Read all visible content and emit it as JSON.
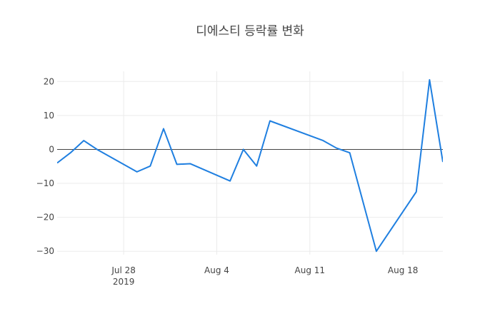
{
  "chart_data": {
    "type": "line",
    "title": "디에스티 등락률 변화",
    "xlabel": "",
    "ylabel": "",
    "x_ticks": [
      {
        "label": "Jul 28",
        "sub": "2019",
        "date": "2019-07-28"
      },
      {
        "label": "Aug 4",
        "sub": "",
        "date": "2019-08-04"
      },
      {
        "label": "Aug 11",
        "sub": "",
        "date": "2019-08-11"
      },
      {
        "label": "Aug 18",
        "sub": "",
        "date": "2019-08-18"
      }
    ],
    "y_ticks": [
      20,
      10,
      0,
      -10,
      -20,
      -30
    ],
    "xlim": [
      "2019-07-23",
      "2019-08-21"
    ],
    "ylim": [
      -31,
      23
    ],
    "grid": true,
    "zero_line": true,
    "series": [
      {
        "color": "#1f7fe0",
        "x": [
          "2019-07-23",
          "2019-07-24",
          "2019-07-25",
          "2019-07-26",
          "2019-07-29",
          "2019-07-30",
          "2019-07-31",
          "2019-08-01",
          "2019-08-02",
          "2019-08-05",
          "2019-08-06",
          "2019-08-07",
          "2019-08-08",
          "2019-08-12",
          "2019-08-13",
          "2019-08-14",
          "2019-08-16",
          "2019-08-19",
          "2019-08-20",
          "2019-08-21"
        ],
        "values": [
          -4.0,
          -1.0,
          2.6,
          0.0,
          -6.6,
          -4.9,
          6.1,
          -4.4,
          -4.2,
          -9.3,
          0.0,
          -4.9,
          8.4,
          2.6,
          0.4,
          -1.0,
          -30.0,
          -12.5,
          20.5,
          -3.7
        ]
      }
    ]
  }
}
